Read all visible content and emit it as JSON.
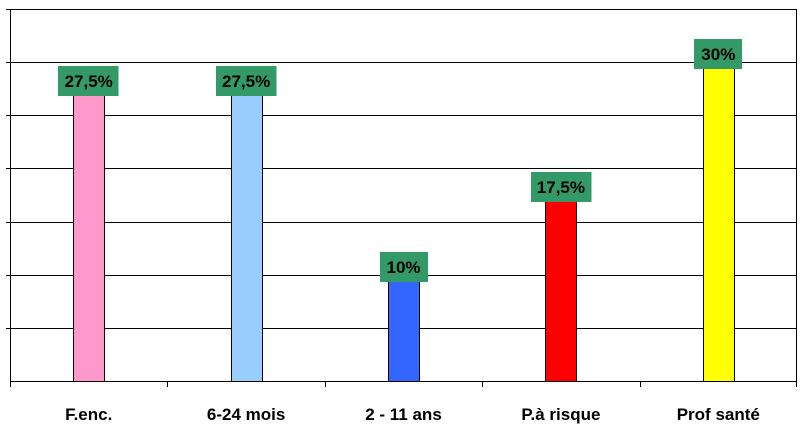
{
  "chart_data": {
    "type": "bar",
    "categories": [
      "F.enc.",
      "6-24 mois",
      "2 - 11 ans",
      "P.à risque",
      "Prof santé"
    ],
    "values": [
      27.5,
      27.5,
      10,
      17.5,
      30
    ],
    "value_labels": [
      "27,5%",
      "27,5%",
      "10%",
      "17,5%",
      "30%"
    ],
    "bar_colors": [
      "#FF99CC",
      "#99CCFF",
      "#3366FF",
      "#FF0000",
      "#FFFF00"
    ],
    "label_bg_color": "#339966",
    "ylim": [
      0,
      35
    ],
    "y_tick_step": 5,
    "grid": true,
    "y_tick_labels_shown": false,
    "legend": false
  }
}
